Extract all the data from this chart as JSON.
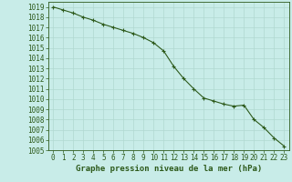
{
  "x": [
    0,
    1,
    2,
    3,
    4,
    5,
    6,
    7,
    8,
    9,
    10,
    11,
    12,
    13,
    14,
    15,
    16,
    17,
    18,
    19,
    20,
    21,
    22,
    23
  ],
  "y": [
    1019.0,
    1018.7,
    1018.4,
    1018.0,
    1017.7,
    1017.3,
    1017.0,
    1016.7,
    1016.4,
    1016.0,
    1015.5,
    1014.7,
    1013.2,
    1012.0,
    1011.0,
    1010.1,
    1009.8,
    1009.5,
    1009.3,
    1009.4,
    1008.0,
    1007.2,
    1006.2,
    1005.4
  ],
  "line_color": "#2d5a1b",
  "marker": "+",
  "marker_color": "#2d5a1b",
  "bg_color": "#c8ece8",
  "grid_color": "#b0d8d0",
  "text_color": "#2d5a1b",
  "xlabel": "Graphe pression niveau de la mer (hPa)",
  "xlim": [
    -0.5,
    23.5
  ],
  "ylim": [
    1005,
    1019.5
  ],
  "yticks": [
    1005,
    1006,
    1007,
    1008,
    1009,
    1010,
    1011,
    1012,
    1013,
    1014,
    1015,
    1016,
    1017,
    1018,
    1019
  ],
  "xticks": [
    0,
    1,
    2,
    3,
    4,
    5,
    6,
    7,
    8,
    9,
    10,
    11,
    12,
    13,
    14,
    15,
    16,
    17,
    18,
    19,
    20,
    21,
    22,
    23
  ],
  "xlabel_fontsize": 6.5,
  "tick_fontsize": 5.5,
  "line_width": 0.8,
  "marker_size": 3.5,
  "marker_edge_width": 0.8
}
